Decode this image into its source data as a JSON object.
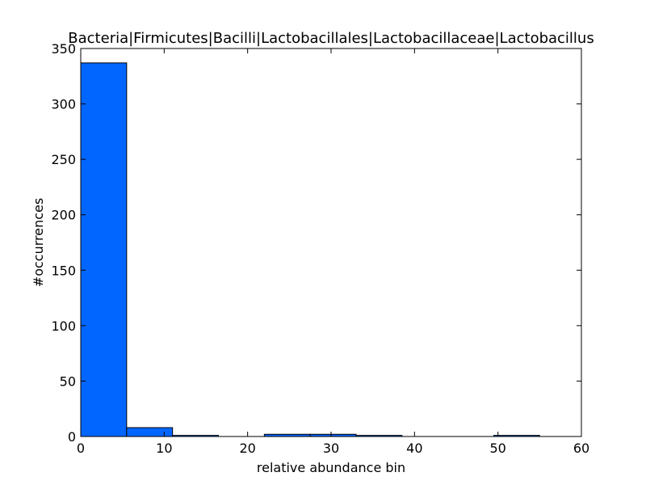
{
  "chart_data": {
    "type": "bar",
    "title": "Bacteria|Firmicutes|Bacilli|Lactobacillales|Lactobacillaceae|Lactobacillus",
    "xlabel": "relative abundance bin",
    "ylabel": "#occurrences",
    "xlim": [
      0,
      60
    ],
    "ylim": [
      0,
      350
    ],
    "xticks": [
      0,
      10,
      20,
      30,
      40,
      50,
      60
    ],
    "yticks": [
      0,
      50,
      100,
      150,
      200,
      250,
      300,
      350
    ],
    "bins": [
      {
        "x0": 0.0,
        "x1": 5.5,
        "count": 337
      },
      {
        "x0": 5.5,
        "x1": 11.0,
        "count": 8
      },
      {
        "x0": 11.0,
        "x1": 16.5,
        "count": 1
      },
      {
        "x0": 16.5,
        "x1": 22.0,
        "count": 0
      },
      {
        "x0": 22.0,
        "x1": 27.5,
        "count": 2
      },
      {
        "x0": 27.5,
        "x1": 33.0,
        "count": 2
      },
      {
        "x0": 33.0,
        "x1": 38.5,
        "count": 1
      },
      {
        "x0": 38.5,
        "x1": 44.0,
        "count": 0
      },
      {
        "x0": 44.0,
        "x1": 49.5,
        "count": 0
      },
      {
        "x0": 49.5,
        "x1": 55.0,
        "count": 1
      }
    ],
    "bar_color": "#0066ff",
    "grid": false
  }
}
